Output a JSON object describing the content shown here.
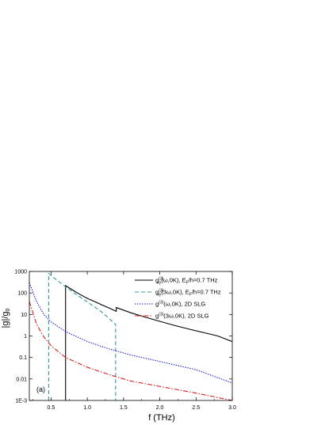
{
  "chart_data": {
    "type": "line",
    "panel_label": "(a)",
    "xlabel": "f (THz)",
    "ylabel_main": "|g|/g",
    "ylabel_sub": "0",
    "xlim": [
      0.2,
      3.0
    ],
    "ylim_log10": [
      -3,
      3
    ],
    "y_scale": "log",
    "x_ticks": [
      {
        "v": 0.5,
        "label": "0.5"
      },
      {
        "v": 1.0,
        "label": "1.0"
      },
      {
        "v": 1.5,
        "label": "1.5"
      },
      {
        "v": 2.0,
        "label": "2.0"
      },
      {
        "v": 2.5,
        "label": "2.5"
      },
      {
        "v": 3.0,
        "label": "3.0"
      }
    ],
    "y_ticks": [
      {
        "e": -3,
        "label": "1E-3"
      },
      {
        "e": -2,
        "label": "0.01"
      },
      {
        "e": -1,
        "label": "0.1"
      },
      {
        "e": 0,
        "label": "1"
      },
      {
        "e": 1,
        "label": "10"
      },
      {
        "e": 2,
        "label": "100"
      },
      {
        "e": 3,
        "label": "1000"
      }
    ],
    "legend_position": "top-right",
    "series": [
      {
        "id": "g3w-ef",
        "color": "#000000",
        "dash": "",
        "legend_main": "g",
        "legend_sup": "(3)",
        "legend_sub": "xy",
        "legend_rest": "(ω,0K), E",
        "legend_sub2": "F",
        "legend_tail": "/h=0.7 THz",
        "points": [
          [
            0.7,
            0.001
          ],
          [
            0.7,
            220
          ],
          [
            0.8,
            135
          ],
          [
            0.9,
            85
          ],
          [
            1.0,
            56
          ],
          [
            1.1,
            40
          ],
          [
            1.2,
            28
          ],
          [
            1.3,
            20
          ],
          [
            1.4,
            14
          ],
          [
            1.4,
            21
          ],
          [
            1.6,
            12
          ],
          [
            1.8,
            7.5
          ],
          [
            2.0,
            4.8
          ],
          [
            2.2,
            3.1
          ],
          [
            2.4,
            2.1
          ],
          [
            2.6,
            1.45
          ],
          [
            2.8,
            1.0
          ],
          [
            3.0,
            0.55
          ]
        ]
      },
      {
        "id": "g3-3w-ef",
        "color": "#2e9a9a",
        "dash": "5,3",
        "legend_main": "g",
        "legend_sup": "(3)",
        "legend_sub": "xy",
        "legend_rest": "(3ω,0K), E",
        "legend_sub2": "F",
        "legend_tail": "/h=0.7 THz",
        "points": [
          [
            0.467,
            0.001
          ],
          [
            0.467,
            800
          ],
          [
            0.6,
            350
          ],
          [
            0.8,
            110
          ],
          [
            1.0,
            38
          ],
          [
            1.2,
            13
          ],
          [
            1.39,
            3.5
          ],
          [
            1.39,
            0.001
          ]
        ]
      },
      {
        "id": "g3w-slg",
        "color": "#1f1fd6",
        "dash": "1.5,1.5",
        "legend_main": "g",
        "legend_sup": "(3)",
        "legend_sub": "",
        "legend_rest": "(ω,0K), 2D SLG",
        "legend_sub2": "",
        "legend_tail": "",
        "points": [
          [
            0.2,
            300
          ],
          [
            0.3,
            40
          ],
          [
            0.4,
            10
          ],
          [
            0.5,
            4.5
          ],
          [
            0.7,
            1.6
          ],
          [
            1.0,
            0.55
          ],
          [
            1.3,
            0.25
          ],
          [
            1.6,
            0.13
          ],
          [
            2.0,
            0.065
          ],
          [
            2.5,
            0.027
          ],
          [
            3.0,
            0.0065
          ]
        ]
      },
      {
        "id": "g3-3w-slg",
        "color": "#d62020",
        "dash": "6,2,1.5,2",
        "legend_main": "g",
        "legend_sup": "(3)",
        "legend_sub": "",
        "legend_rest": "(3ω,0K), 2D SLG",
        "legend_sub2": "",
        "legend_tail": "",
        "points": [
          [
            0.2,
            40
          ],
          [
            0.3,
            3.5
          ],
          [
            0.4,
            0.9
          ],
          [
            0.5,
            0.35
          ],
          [
            0.7,
            0.1
          ],
          [
            1.0,
            0.035
          ],
          [
            1.3,
            0.016
          ],
          [
            1.6,
            0.008
          ],
          [
            2.0,
            0.0045
          ],
          [
            2.5,
            0.0022
          ],
          [
            3.0,
            0.00095
          ]
        ]
      }
    ]
  }
}
